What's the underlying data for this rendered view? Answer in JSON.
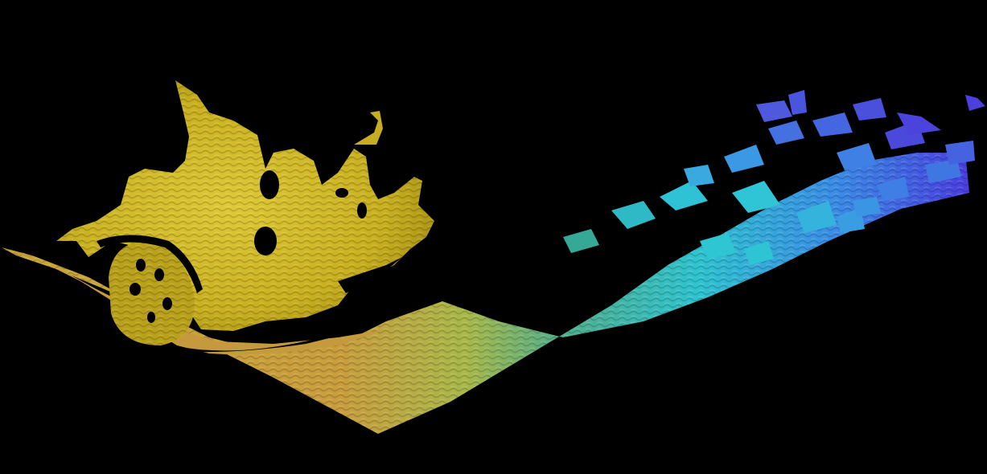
{
  "scene": {
    "background_color": "#000000",
    "subject": "car-and-road-depth-mesh",
    "colormap": [
      "#d8c21a",
      "#c8a33a",
      "#9fbf44",
      "#4fb29a",
      "#2fc4d2",
      "#3f7fe6",
      "#4b3fdd"
    ]
  }
}
